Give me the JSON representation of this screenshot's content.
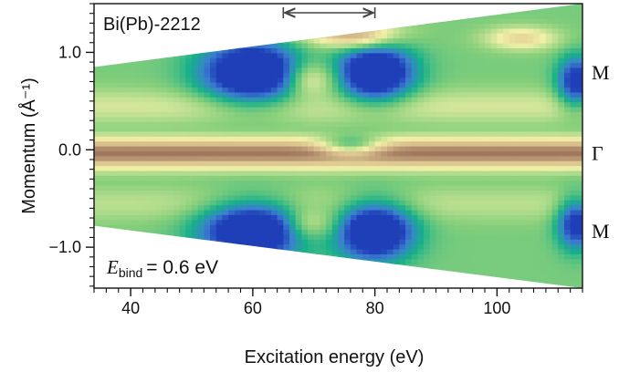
{
  "chart_data": {
    "type": "heatmap",
    "title": "",
    "sample_label": "Bi(Pb)-2212",
    "xlabel": "Excitation energy (eV)",
    "ylabel": "Momentum (Å⁻¹)",
    "xlim": [
      34,
      114
    ],
    "ylim": [
      -1.42,
      1.5
    ],
    "x_ticks": [
      40,
      60,
      80,
      100
    ],
    "x_tick_labels": [
      "40",
      "60",
      "80",
      "100"
    ],
    "x_minor_step": 2,
    "y_ticks": [
      -1.0,
      0.0,
      1.0
    ],
    "y_tick_labels": [
      "−1.0",
      "0.0",
      "1.0"
    ],
    "y_minor_step": 0.1,
    "measured_region": {
      "x": [
        34,
        114
      ],
      "y_top": [
        0.85,
        1.5
      ],
      "y_bottom": [
        -0.78,
        -1.42
      ]
    },
    "binding_energy": {
      "symbol": "E",
      "subscript": "bind",
      "text": "= 0.6 eV"
    },
    "range_marker": {
      "x": [
        65,
        80
      ]
    },
    "right_labels": [
      {
        "text": "M",
        "y": 0.8
      },
      {
        "text": "Γ",
        "y": -0.03
      },
      {
        "text": "M",
        "y": -0.83
      }
    ],
    "colormap": [
      "#1f3fb8",
      "#3b7fd0",
      "#17b08a",
      "#86cf7b",
      "#f3f0a8",
      "#d3b888",
      "#8a5c4c"
    ],
    "features": [
      {
        "kind": "band",
        "name": "Gamma band",
        "y_center": -0.03,
        "width": 0.16,
        "intensity": 0.95
      },
      {
        "kind": "band",
        "name": "upper arc",
        "y_center": 0.45,
        "width": 0.18,
        "intensity": 0.62
      },
      {
        "kind": "band",
        "name": "lower arc",
        "y_center": -0.55,
        "width": 0.18,
        "intensity": 0.58
      },
      {
        "kind": "low",
        "x": 60,
        "y": 0.8,
        "rx": 8,
        "ry": 0.3,
        "depth": 0.85
      },
      {
        "kind": "low",
        "x": 80,
        "y": 0.8,
        "rx": 6,
        "ry": 0.28,
        "depth": 0.85
      },
      {
        "kind": "low",
        "x": 60,
        "y": -0.83,
        "rx": 8,
        "ry": 0.28,
        "depth": 0.85
      },
      {
        "kind": "low",
        "x": 80,
        "y": -0.83,
        "rx": 6,
        "ry": 0.28,
        "depth": 0.85
      },
      {
        "kind": "low",
        "x": 113,
        "y": 0.7,
        "rx": 3,
        "ry": 0.25,
        "depth": 0.6
      },
      {
        "kind": "low",
        "x": 113,
        "y": -0.75,
        "rx": 3,
        "ry": 0.25,
        "depth": 0.6
      },
      {
        "kind": "hot",
        "x": 70,
        "y": 0.7,
        "rx": 4,
        "ry": 0.25,
        "level": 0.6
      },
      {
        "kind": "hot",
        "x": 70,
        "y": -0.72,
        "rx": 4,
        "ry": 0.22,
        "level": 0.55
      },
      {
        "kind": "low",
        "x": 76,
        "y": 0.05,
        "rx": 5,
        "ry": 0.1,
        "depth": 0.35
      },
      {
        "kind": "hot",
        "x": 76,
        "y": 1.2,
        "rx": 8,
        "ry": 0.15,
        "level": 0.85
      },
      {
        "kind": "hot",
        "x": 104,
        "y": 1.15,
        "rx": 6,
        "ry": 0.12,
        "level": 0.75
      }
    ]
  }
}
